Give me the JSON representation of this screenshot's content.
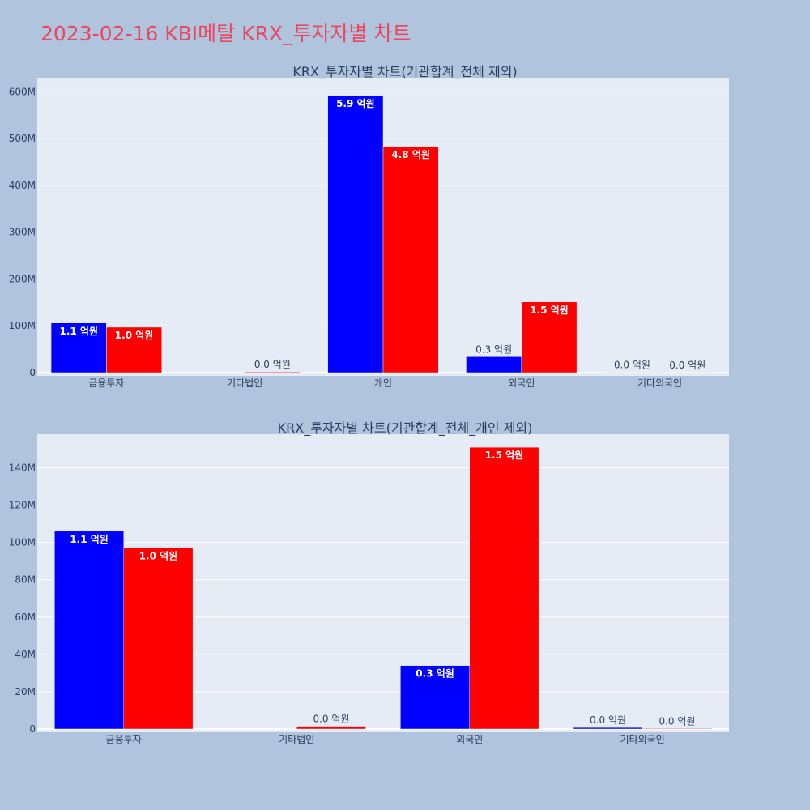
{
  "title": "2023-02-16 KBI메탈 KRX_투자자별 차트",
  "colors": {
    "page_bg": "#b0c4de",
    "plot_bg": "#e5ecf6",
    "title": "#e8475f",
    "grid": "#ffffff",
    "text": "#2a3f5f",
    "series_a": "#0000ff",
    "series_b": "#ff0000"
  },
  "chart_data": [
    {
      "type": "bar",
      "title": "KRX_투자자별 차트(기관합계_전체 제외)",
      "categories": [
        "금융투자",
        "기타법인",
        "개인",
        "외국인",
        "기타외국인"
      ],
      "y_ticks": [
        "0",
        "100M",
        "200M",
        "300M",
        "400M",
        "500M",
        "600M"
      ],
      "ylim": [
        0,
        630000000
      ],
      "grid": true,
      "series": [
        {
          "color": "#0000ff",
          "values": [
            106000000,
            0,
            592000000,
            34000000,
            800000
          ],
          "labels": [
            "1.1 억원",
            "",
            "5.9 억원",
            "0.3 억원",
            "0.0 억원"
          ]
        },
        {
          "color": "#ff0000",
          "values": [
            97000000,
            1500000,
            483000000,
            151000000,
            300000
          ],
          "labels": [
            "1.0 억원",
            "0.0 억원",
            "4.8 억원",
            "1.5 억원",
            "0.0 억원"
          ]
        }
      ]
    },
    {
      "type": "bar",
      "title": "KRX_투자자별 차트(기관합계_전체_개인 제외)",
      "categories": [
        "금융투자",
        "기타법인",
        "외국인",
        "기타외국인"
      ],
      "y_ticks": [
        "0",
        "20M",
        "40M",
        "60M",
        "80M",
        "100M",
        "120M",
        "140M"
      ],
      "ylim": [
        0,
        158000000
      ],
      "grid": true,
      "series": [
        {
          "color": "#0000ff",
          "values": [
            106000000,
            0,
            34000000,
            800000
          ],
          "labels": [
            "1.1 억원",
            "",
            "0.3 억원",
            "0.0 억원"
          ]
        },
        {
          "color": "#ff0000",
          "values": [
            97000000,
            1500000,
            151000000,
            300000
          ],
          "labels": [
            "1.0 억원",
            "0.0 억원",
            "1.5 억원",
            "0.0 억원"
          ]
        }
      ]
    }
  ]
}
